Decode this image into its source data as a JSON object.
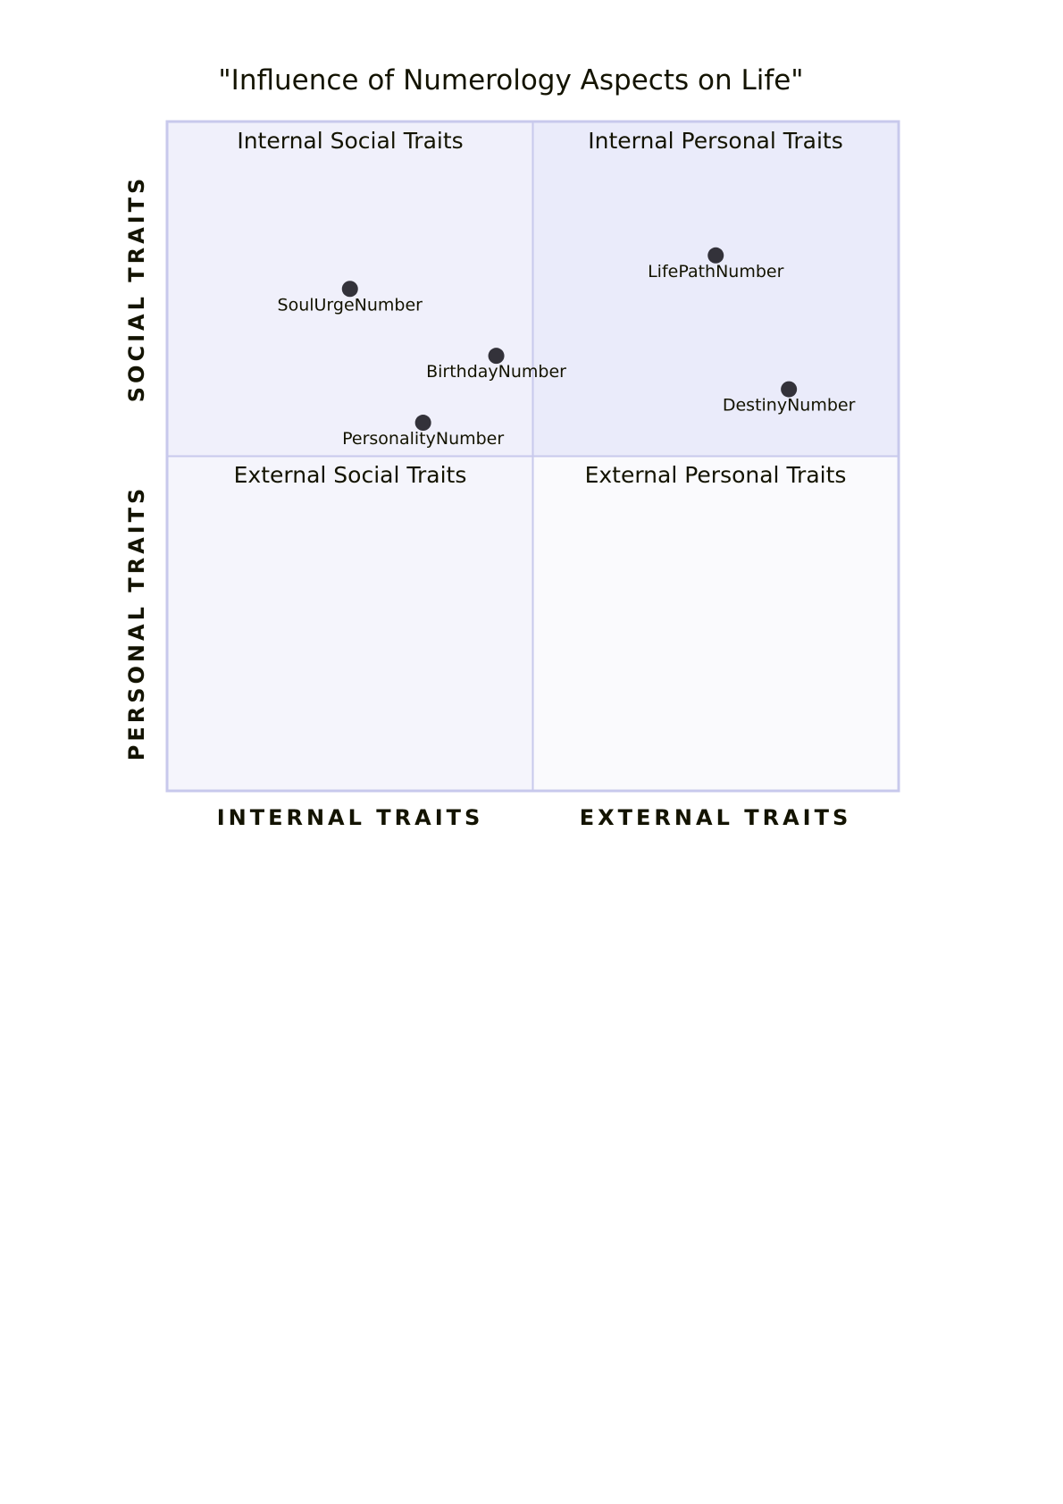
{
  "chart_data": {
    "type": "scatter",
    "title": "\"Influence of Numerology Aspects on Life\"",
    "x_axis": {
      "left_label": "INTERNAL TRAITS",
      "right_label": "EXTERNAL TRAITS",
      "range": [
        0,
        1
      ]
    },
    "y_axis": {
      "bottom_label": "PERSONAL TRAITS",
      "top_label": "SOCIAL TRAITS",
      "range": [
        0,
        1
      ]
    },
    "quadrants": {
      "top_right": "Internal Personal Traits",
      "top_left": "Internal Social Traits",
      "bottom_left": "External Social Traits",
      "bottom_right": "External Personal Traits"
    },
    "points": [
      {
        "name": "LifePathNumber",
        "x": 0.75,
        "y": 0.8
      },
      {
        "name": "DestinyNumber",
        "x": 0.85,
        "y": 0.6
      },
      {
        "name": "SoulUrgeNumber",
        "x": 0.25,
        "y": 0.75
      },
      {
        "name": "PersonalityNumber",
        "x": 0.35,
        "y": 0.55
      },
      {
        "name": "BirthdayNumber",
        "x": 0.45,
        "y": 0.65
      }
    ],
    "colors": {
      "point": "#33323a",
      "quadrant_top_right": "#eaebfa",
      "quadrant_top_left": "#f0f0fb",
      "quadrant_bottom_left": "#f5f5fc",
      "quadrant_bottom_right": "#fafafd",
      "border": "#c8c9ec",
      "text": "#131300"
    }
  }
}
